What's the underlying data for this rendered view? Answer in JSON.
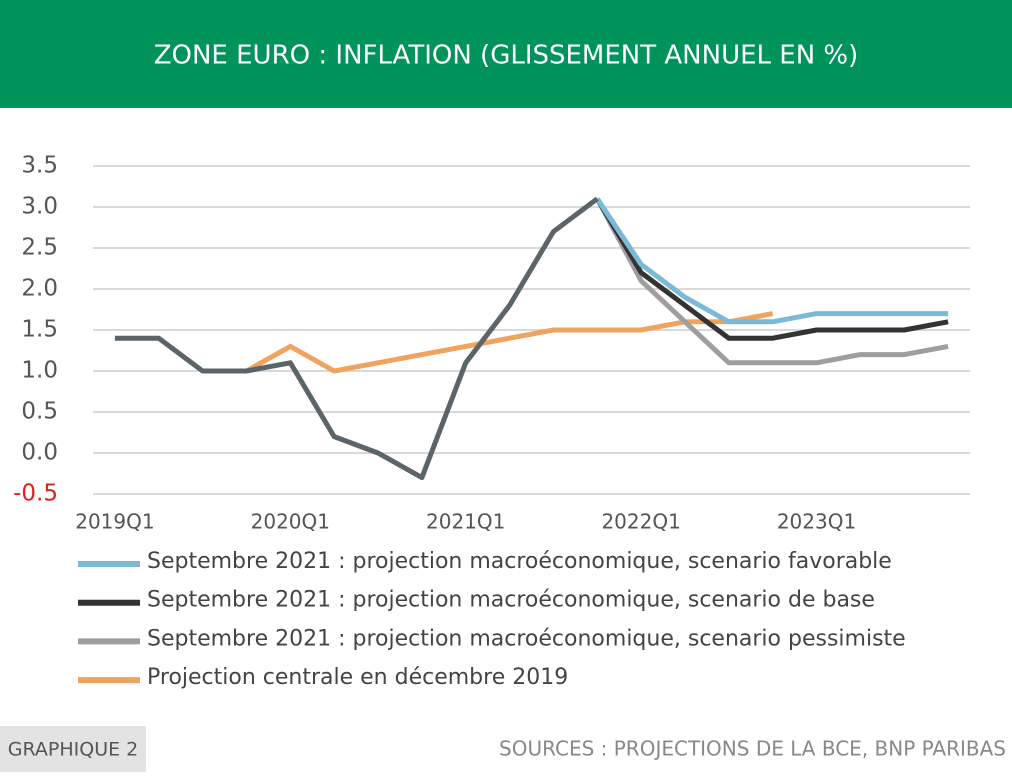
{
  "chart_data": {
    "type": "line",
    "title": "ZONE EURO : INFLATION (GLISSEMENT ANNUEL EN %)",
    "figure_label": "GRAPHIQUE 2",
    "source": "SOURCES : PROJECTIONS DE LA BCE, BNP PARIBAS",
    "categories": [
      "2019Q1",
      null,
      null,
      null,
      "2020Q1",
      null,
      null,
      null,
      "2021Q1",
      null,
      null,
      null,
      "2022Q1",
      null,
      null,
      null,
      "2023Q1",
      null,
      null,
      null
    ],
    "series": [
      {
        "name": "Septembre 2021 : projection macroéconomique, scenario favorable",
        "color": "#7bb9d8",
        "values": [
          null,
          null,
          null,
          null,
          null,
          null,
          null,
          null,
          null,
          null,
          null,
          3.1,
          2.3,
          1.9,
          1.6,
          1.6,
          1.7,
          1.7,
          1.7,
          1.7
        ]
      },
      {
        "name": "Septembre 2021 : projection macroéconomique, scenario de base",
        "color": "#333333",
        "values": [
          null,
          null,
          null,
          null,
          null,
          null,
          null,
          null,
          null,
          null,
          null,
          3.1,
          2.2,
          1.8,
          1.4,
          1.4,
          1.5,
          1.5,
          1.5,
          1.6
        ]
      },
      {
        "name": "Septembre 2021 : projection macroéconomique, scenario pessimiste",
        "color": "#9e9e9e",
        "values": [
          null,
          null,
          null,
          null,
          null,
          null,
          null,
          null,
          null,
          null,
          null,
          3.1,
          2.1,
          1.6,
          1.1,
          1.1,
          1.1,
          1.2,
          1.2,
          1.3
        ]
      },
      {
        "name": "Projection centrale en décembre 2019",
        "color": "#f0a35e",
        "values": [
          null,
          null,
          null,
          1.0,
          1.3,
          1.0,
          1.1,
          1.2,
          1.3,
          1.4,
          1.5,
          1.5,
          1.5,
          1.6,
          1.6,
          1.7,
          null,
          null,
          null,
          null
        ]
      },
      {
        "color": "#5b6569",
        "values": [
          1.4,
          1.4,
          1.0,
          1.0,
          1.1,
          0.2,
          0.0,
          -0.3,
          1.1,
          1.8,
          2.7,
          3.1,
          null,
          null,
          null,
          null,
          null,
          null,
          null,
          null
        ]
      }
    ],
    "ylim": [
      -0.5,
      3.5
    ],
    "yticks": [
      {
        "value": 3.5,
        "label": "3.5"
      },
      {
        "value": 3,
        "label": "3.0"
      },
      2.5,
      {
        "value": 2,
        "label": "2.0"
      },
      1.5,
      {
        "value": 1,
        "label": "1.0"
      },
      0.5,
      {
        "value": 0,
        "label": "0.0"
      },
      -0.5
    ],
    "negative_tick_color": "#e0201b",
    "grid": true
  }
}
